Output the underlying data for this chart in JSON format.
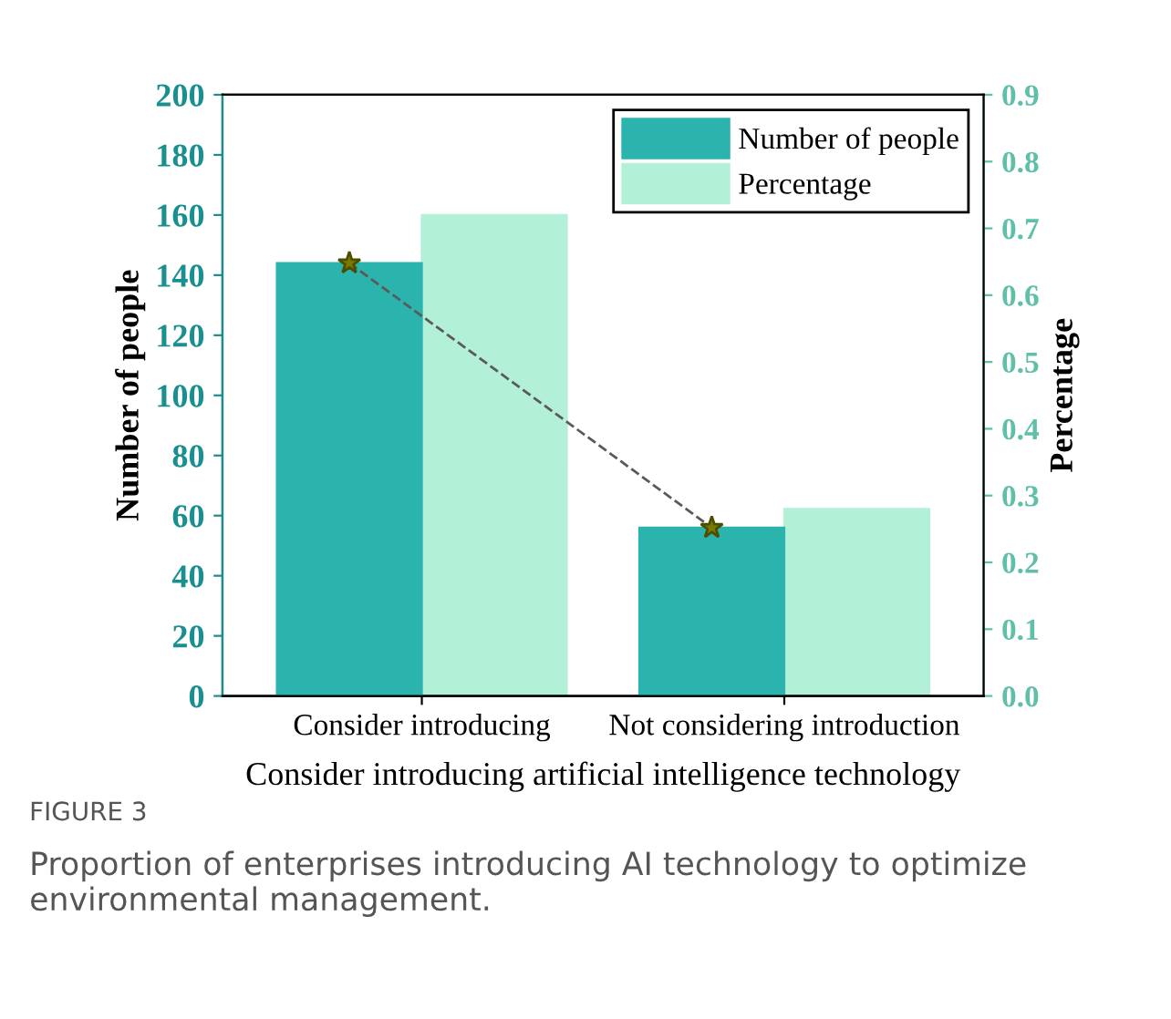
{
  "chart_data": {
    "type": "bar",
    "categories": [
      "Consider introducing",
      "Not considering introduction"
    ],
    "xlabel": "Consider introducing artificial intelligence technology",
    "ylabel": "Number of people",
    "y2label": "Percentage",
    "series": [
      {
        "name": "Number of people",
        "color": "#2bb3ad",
        "values": [
          144,
          56
        ]
      },
      {
        "name": "Percentage",
        "color": "#b3f0d8",
        "values": [
          0.72,
          0.28
        ],
        "axis": "y2"
      },
      {
        "type": "line",
        "color": "#5a5a5a",
        "values": [
          144,
          56
        ],
        "marker": "star",
        "line_style": "dashed"
      }
    ],
    "ylim": [
      0,
      200
    ],
    "yticks": [
      0,
      20,
      40,
      60,
      80,
      100,
      120,
      140,
      160,
      180,
      200
    ],
    "y2lim": [
      0,
      0.9
    ],
    "y2ticks": [
      {
        "value": 0,
        "label": "0.0"
      },
      0.1,
      0.2,
      0.3,
      0.4,
      0.5,
      0.6,
      0.7,
      0.8,
      0.9
    ],
    "legend": "top right",
    "grid": false,
    "annotations": [
      "FIGURE 3",
      "Proportion of enterprises introducing AI technology to optimize environmental management."
    ]
  }
}
